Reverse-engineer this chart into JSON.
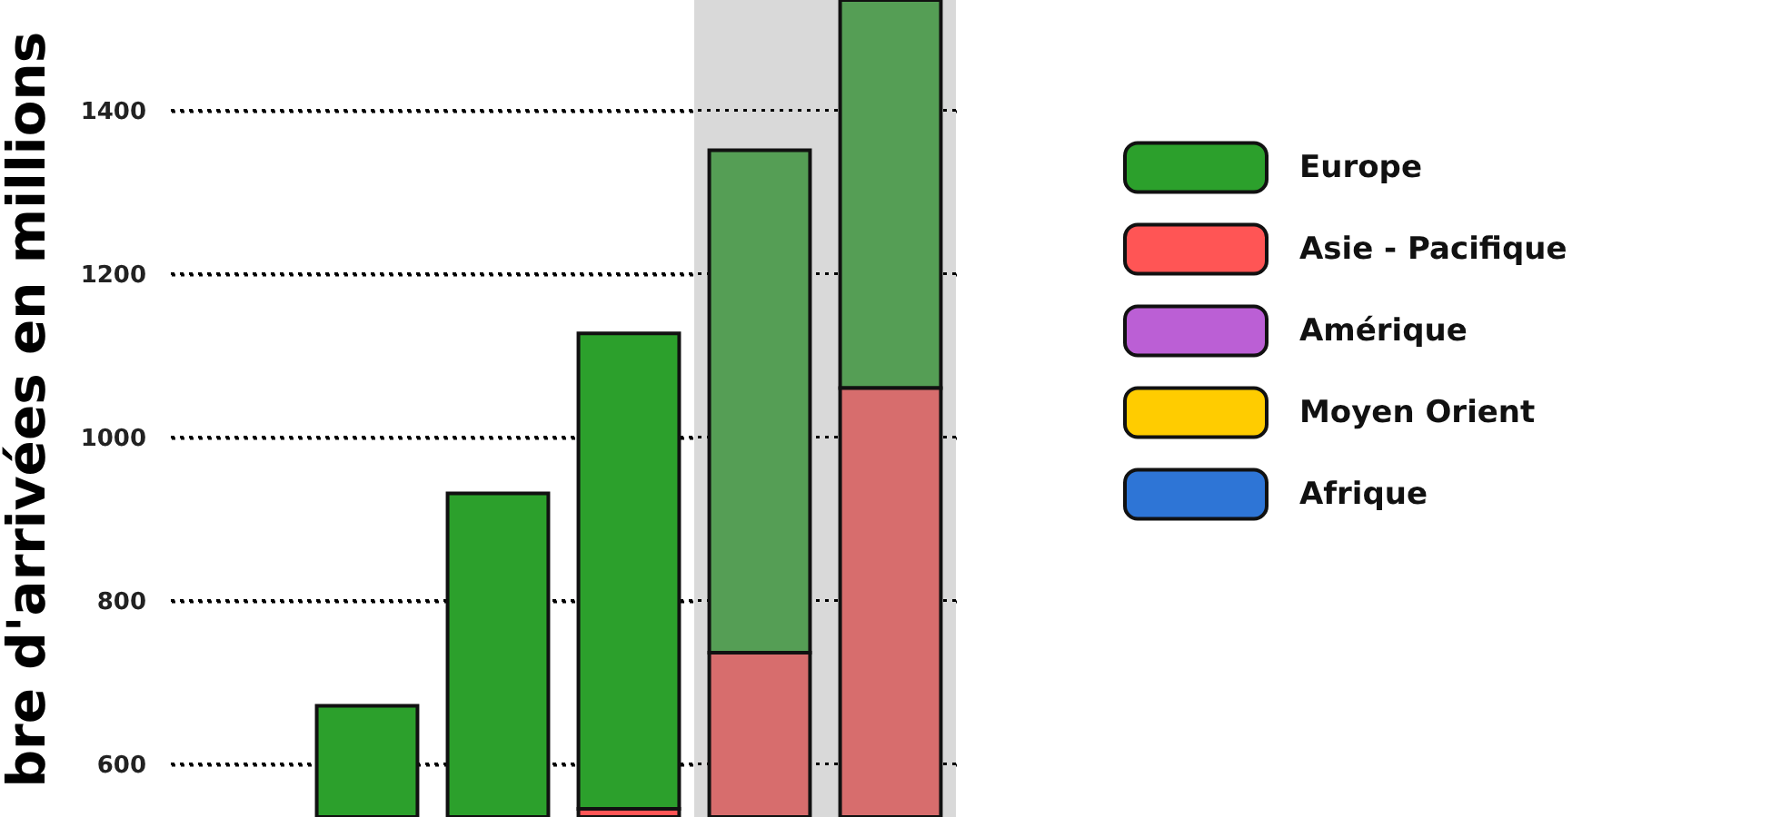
{
  "chart_data": {
    "type": "bar",
    "ylabel": "bre d'arrivées en millions",
    "categories": [
      null,
      null,
      null,
      null,
      null,
      null
    ],
    "series": [
      {
        "name": "Europe",
        "color": "#2ca02c",
        "colors": [
          "#2ca02c",
          "#2ca02c",
          "#2ca02c",
          "#2ca02c",
          "#559e55",
          "#559e55"
        ],
        "base": [
          null,
          535,
          535,
          545,
          736,
          1060
        ],
        "values": [
          null,
          136,
          396,
          582,
          615,
          475
        ]
      },
      {
        "name": "Asie - Pacifique",
        "color": "#ff5555",
        "colors": [
          "#ff5555",
          "#ff5555",
          "#ff5555",
          "#ff5555",
          "#d76d6d",
          "#d76d6d"
        ],
        "base": [
          null,
          null,
          null,
          535,
          535,
          535
        ],
        "values": [
          null,
          null,
          null,
          10,
          201,
          525
        ]
      },
      {
        "name": "Amérique",
        "color": "#bb5fd5",
        "values": [
          null,
          null,
          null,
          null,
          null,
          null
        ]
      },
      {
        "name": "Moyen Orient",
        "color": "#ffcc00",
        "values": [
          null,
          null,
          null,
          null,
          null,
          null
        ]
      },
      {
        "name": "Afrique",
        "color": "#2e75d6",
        "values": [
          null,
          null,
          null,
          null,
          null,
          null
        ]
      }
    ],
    "ylim": [
      535,
      1535
    ],
    "yticks": [
      600,
      800,
      1000,
      1200,
      1400
    ],
    "grid": "y",
    "legend": "right"
  }
}
